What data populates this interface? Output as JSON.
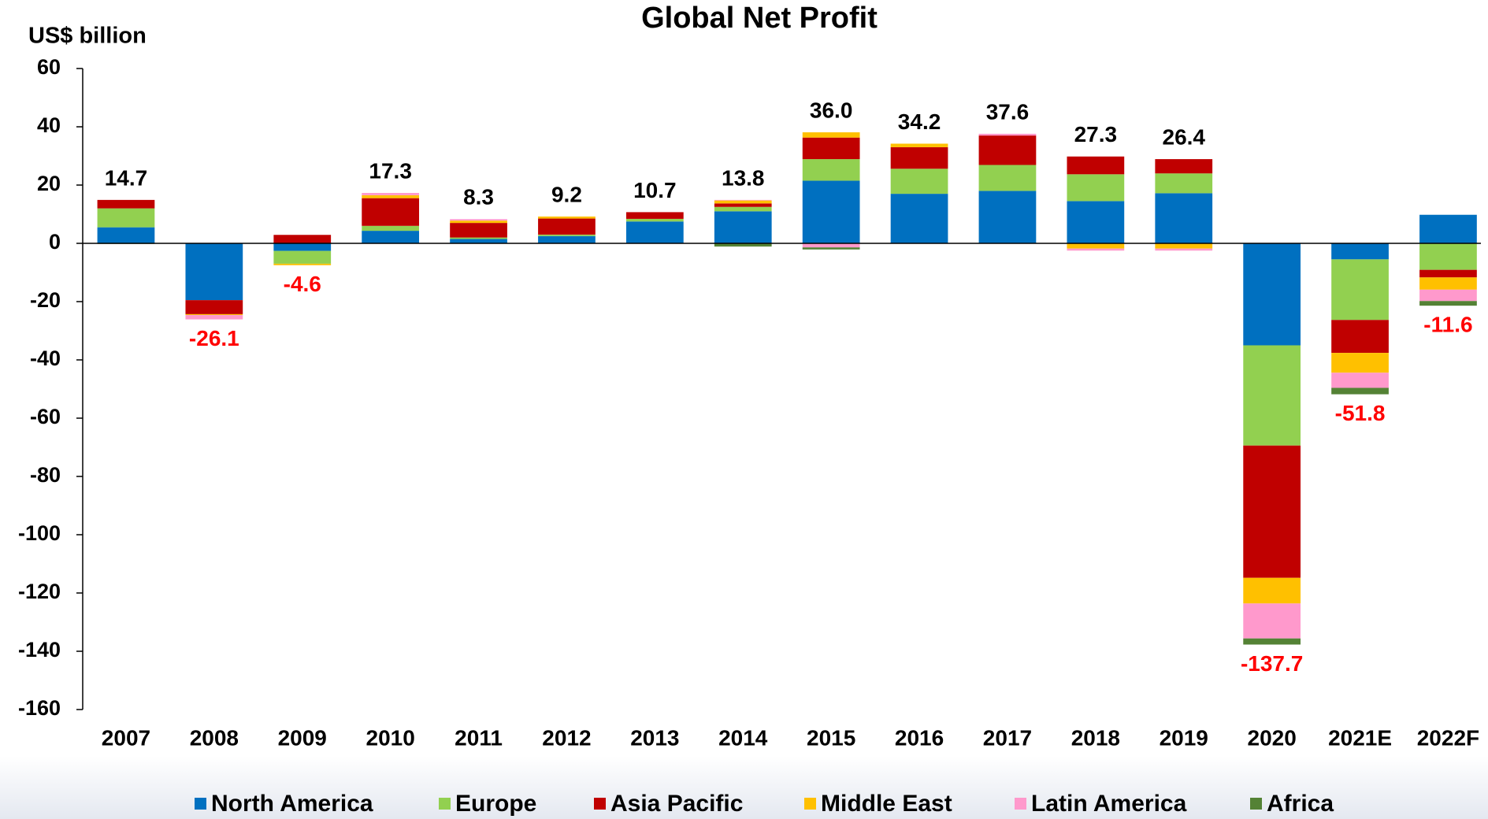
{
  "chart_data": {
    "type": "stacked_bar",
    "title": "Global Net Profit",
    "y_axis_label": "US$ billion",
    "categories": [
      "2007",
      "2008",
      "2009",
      "2010",
      "2011",
      "2012",
      "2013",
      "2014",
      "2015",
      "2016",
      "2017",
      "2018",
      "2019",
      "2020",
      "2021E",
      "2022F"
    ],
    "series": [
      {
        "name": "North America",
        "color": "#0070c0",
        "values": [
          5.5,
          -19.5,
          -2.6,
          4.3,
          1.5,
          2.5,
          7.5,
          11,
          21.5,
          17,
          18,
          14.5,
          17.2,
          -35,
          -5.5,
          9.8
        ]
      },
      {
        "name": "Europe",
        "color": "#92d050",
        "values": [
          6.5,
          0,
          -4.4,
          1.7,
          0.5,
          0.5,
          0.9,
          1.5,
          7.4,
          8.6,
          8.9,
          9.2,
          6.8,
          -34.4,
          -20.8,
          -9.1
        ]
      },
      {
        "name": "Asia Pacific",
        "color": "#c00000",
        "values": [
          2.9,
          -4.8,
          2.9,
          9.5,
          5,
          5.5,
          2.3,
          1.2,
          7.4,
          7.4,
          10.1,
          6.1,
          4.9,
          -45.4,
          -11.3,
          -2.6
        ]
      },
      {
        "name": "Middle East",
        "color": "#ffc000",
        "values": [
          0,
          -0.3,
          -0.5,
          1,
          0.8,
          0.7,
          0,
          1,
          1.8,
          1.2,
          0,
          -1.8,
          -1.8,
          -8.8,
          -6.8,
          -4.2
        ]
      },
      {
        "name": "Latin America",
        "color": "#ff99cc",
        "values": [
          0,
          -1.5,
          0,
          0.8,
          0.5,
          0,
          0,
          0.2,
          -1.4,
          0,
          0.6,
          -0.7,
          -0.7,
          -12,
          -5.2,
          -3.9
        ]
      },
      {
        "name": "Africa",
        "color": "#548235",
        "values": [
          -0.2,
          0,
          0,
          0,
          0,
          0,
          0,
          -1.1,
          -0.7,
          0,
          0,
          0,
          0,
          -2.1,
          -2.2,
          -1.6
        ]
      }
    ],
    "totals": [
      14.7,
      -26.1,
      -4.6,
      17.3,
      8.3,
      9.2,
      10.7,
      13.8,
      36.0,
      34.2,
      37.6,
      27.3,
      26.4,
      -137.7,
      -51.8,
      -11.6
    ],
    "total_labels": [
      "14.7",
      "-26.1",
      "-4.6",
      "17.3",
      "8.3",
      "9.2",
      "10.7",
      "13.8",
      "36.0",
      "34.2",
      "37.6",
      "27.3",
      "26.4",
      "-137.7",
      "-51.8",
      "-11.6"
    ],
    "ylim": [
      -160,
      60
    ],
    "yticks": [
      -160,
      -140,
      -120,
      -100,
      -80,
      -60,
      -40,
      -20,
      0,
      20,
      40,
      60
    ],
    "grid": false,
    "legend": "bottom"
  }
}
